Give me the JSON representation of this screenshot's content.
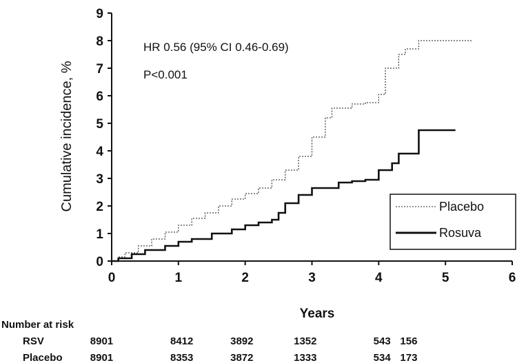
{
  "chart_data": {
    "type": "line",
    "title": "",
    "xlabel": "Years",
    "ylabel": "Cumulative incidence, %",
    "xlim": [
      0,
      6
    ],
    "ylim": [
      0,
      9
    ],
    "x_ticks": [
      "0",
      "1",
      "2",
      "3",
      "4",
      "5",
      "6"
    ],
    "y_ticks": [
      "0",
      "1",
      "2",
      "3",
      "4",
      "5",
      "6",
      "7",
      "8",
      "9"
    ],
    "grid": false,
    "legend_position": "lower-right",
    "annotations": [
      "HR 0.56 (95% CI 0.46-0.69)",
      "P<0.001"
    ],
    "series": [
      {
        "name": "Placebo",
        "style": "dotted",
        "color": "#444444",
        "x": [
          0,
          0.1,
          0.2,
          0.4,
          0.6,
          0.8,
          1.0,
          1.2,
          1.4,
          1.6,
          1.8,
          2.0,
          2.2,
          2.4,
          2.6,
          2.8,
          3.0,
          3.2,
          3.3,
          3.6,
          3.8,
          4.0,
          4.1,
          4.3,
          4.4,
          4.6,
          5.0,
          5.4
        ],
        "y": [
          0,
          0.15,
          0.3,
          0.55,
          0.8,
          1.05,
          1.3,
          1.55,
          1.75,
          2.0,
          2.25,
          2.45,
          2.65,
          2.95,
          3.3,
          3.8,
          4.5,
          5.2,
          5.55,
          5.7,
          5.75,
          6.05,
          7.0,
          7.5,
          7.7,
          8.0,
          8.0,
          8.0
        ]
      },
      {
        "name": "Rosuva",
        "style": "solid",
        "color": "#111111",
        "x": [
          0,
          0.1,
          0.3,
          0.5,
          0.8,
          1.0,
          1.2,
          1.5,
          1.8,
          2.0,
          2.2,
          2.4,
          2.5,
          2.6,
          2.8,
          3.0,
          3.2,
          3.4,
          3.6,
          3.8,
          4.0,
          4.2,
          4.3,
          4.6,
          5.0,
          5.15
        ],
        "y": [
          0,
          0.1,
          0.25,
          0.4,
          0.55,
          0.7,
          0.8,
          1.0,
          1.15,
          1.3,
          1.4,
          1.5,
          1.75,
          2.1,
          2.4,
          2.65,
          2.65,
          2.85,
          2.9,
          2.95,
          3.3,
          3.55,
          3.9,
          4.75,
          4.75,
          4.75
        ]
      }
    ],
    "risk_table": {
      "title": "Number at risk",
      "rows": [
        {
          "label": "RSV",
          "values": [
            "8901",
            "8412",
            "3892",
            "1352",
            "543",
            "156"
          ]
        },
        {
          "label": "Placebo",
          "values": [
            "8901",
            "8353",
            "3872",
            "1333",
            "534",
            "173"
          ]
        }
      ],
      "x_positions": [
        -0.15,
        1.05,
        1.95,
        2.9,
        4.05,
        4.45
      ]
    }
  }
}
